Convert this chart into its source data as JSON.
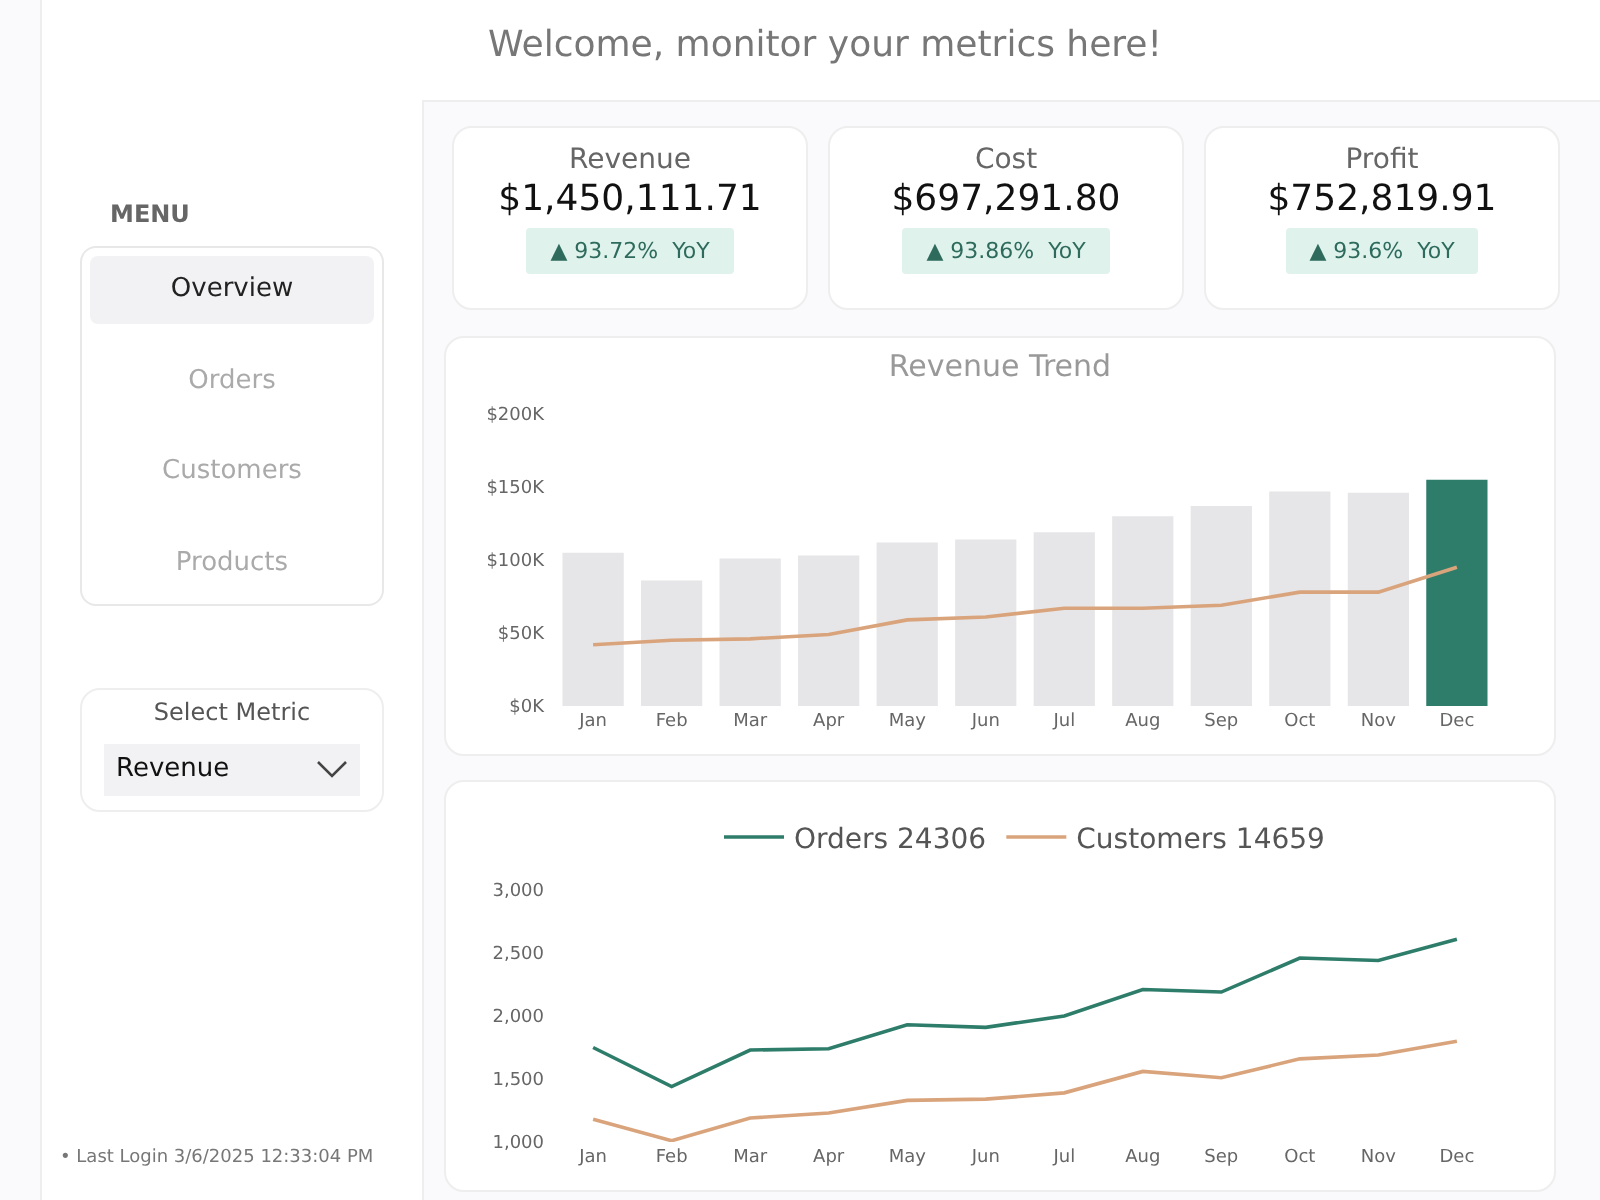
{
  "chart_data": [
    {
      "type": "other",
      "title": "Welcome, monitor your metrics here!"
    },
    {
      "type": "other",
      "title": "MENU",
      "annotations": [
        "Overview",
        "Orders",
        "Customers",
        "Products"
      ]
    },
    {
      "type": "other",
      "title": "Select Metric",
      "subtitle": "Revenue"
    },
    {
      "type": "other",
      "annotations": [
        "• Last Login 3/6/2025 12:33:04 PM"
      ]
    },
    {
      "type": "other",
      "title": "Revenue",
      "subtitle": "$1,450,111.71",
      "annotations": [
        "▲ 93.72%  YoY"
      ]
    },
    {
      "type": "other",
      "title": "Cost",
      "subtitle": "$697,291.80",
      "annotations": [
        "▲ 93.86%  YoY"
      ]
    },
    {
      "type": "other",
      "title": "Profit",
      "subtitle": "$752,819.91",
      "annotations": [
        "▲ 93.6%  YoY"
      ]
    },
    {
      "type": "bar",
      "title": "Revenue Trend",
      "categories": [
        "Jan",
        "Feb",
        "Mar",
        "Apr",
        "May",
        "Jun",
        "Jul",
        "Aug",
        "Sep",
        "Oct",
        "Nov",
        "Dec"
      ],
      "series": [
        {
          "type": "bar",
          "colors": [
            "#e6e6e8",
            "#e6e6e8",
            "#e6e6e8",
            "#e6e6e8",
            "#e6e6e8",
            "#e6e6e8",
            "#e6e6e8",
            "#e6e6e8",
            "#e6e6e8",
            "#e6e6e8",
            "#e6e6e8",
            "#2e7d6b"
          ],
          "values": [
            105000,
            86000,
            101000,
            103000,
            112000,
            114000,
            119000,
            130000,
            137000,
            147000,
            146000,
            155000
          ]
        },
        {
          "type": "line",
          "color": "#d9a47c",
          "values": [
            42000,
            45000,
            46000,
            49000,
            59000,
            61000,
            67000,
            67000,
            69000,
            78000,
            78000,
            95000
          ]
        }
      ],
      "ylim": [
        0,
        200000
      ],
      "yticks": [
        {
          "value": 0,
          "label": "$0K"
        },
        {
          "value": 50000,
          "label": "$50K"
        },
        {
          "value": 100000,
          "label": "$100K"
        },
        {
          "value": 150000,
          "label": "$150K"
        },
        {
          "value": 200000,
          "label": "$200K"
        }
      ]
    },
    {
      "type": "line",
      "categories": [
        "Jan",
        "Feb",
        "Mar",
        "Apr",
        "May",
        "Jun",
        "Jul",
        "Aug",
        "Sep",
        "Oct",
        "Nov",
        "Dec"
      ],
      "series": [
        {
          "name": "Orders 24306",
          "color": "#2e7d6b",
          "values": [
            1750,
            1440,
            1730,
            1740,
            1930,
            1910,
            2000,
            2210,
            2190,
            2460,
            2440,
            2610
          ]
        },
        {
          "name": "Customers 14659",
          "color": "#d9a47c",
          "values": [
            1180,
            1010,
            1190,
            1230,
            1330,
            1340,
            1390,
            1560,
            1510,
            1660,
            1690,
            1800
          ]
        }
      ],
      "ylim": [
        1000,
        3000
      ],
      "yticks": [
        {
          "value": 1000,
          "label": "1,000"
        },
        {
          "value": 1500,
          "label": "1,500"
        },
        {
          "value": 2000,
          "label": "2,000"
        },
        {
          "value": 2500,
          "label": "2,500"
        },
        {
          "value": 3000,
          "label": "3,000"
        }
      ],
      "legend": "top"
    }
  ]
}
